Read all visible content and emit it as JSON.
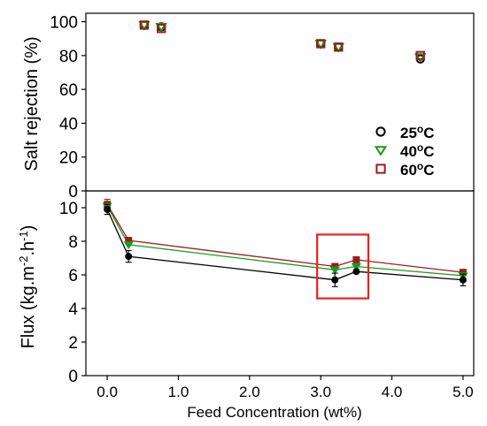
{
  "chart_data": [
    {
      "type": "scatter",
      "ylabel": "Salt rejection (%)",
      "ylim": [
        0,
        105
      ],
      "yticks": [
        0,
        20,
        40,
        60,
        80,
        100
      ],
      "xlim": [
        -0.3,
        5.15
      ],
      "legend": {
        "placement": "bottom-right",
        "unit_sup": "o",
        "unit_c": "C"
      },
      "series": [
        {
          "name": "25",
          "marker": "circle",
          "color": "#000000",
          "x": [
            0.52,
            0.76,
            3.0,
            3.25,
            4.4
          ],
          "y": [
            98,
            97,
            87,
            85,
            78
          ]
        },
        {
          "name": "40",
          "marker": "triangle-down",
          "color": "#1a9a1a",
          "x": [
            0.52,
            0.76,
            3.0,
            3.25,
            4.4
          ],
          "y": [
            98,
            97,
            87,
            85,
            79
          ]
        },
        {
          "name": "60",
          "marker": "square",
          "color": "#9b1c1c",
          "x": [
            0.52,
            0.76,
            3.0,
            3.25,
            4.4
          ],
          "y": [
            98,
            96,
            87,
            85,
            80
          ]
        }
      ]
    },
    {
      "type": "line",
      "ylabel_parts": [
        "Flux (kg.m",
        "-2",
        ".h",
        "-1",
        ")"
      ],
      "xlabel": "Feed Concentration (wt%)",
      "ylim": [
        0,
        11
      ],
      "yticks": [
        0,
        2,
        4,
        6,
        8,
        10
      ],
      "xlim": [
        -0.3,
        5.15
      ],
      "xticks": [
        0,
        1,
        2,
        3,
        4,
        5
      ],
      "xtick_labels": [
        "0.0",
        "1.0",
        "2.0",
        "3.0",
        "4.0",
        "5.0"
      ],
      "highlight_box": {
        "x": [
          2.95,
          3.67
        ],
        "y": [
          4.6,
          8.4
        ],
        "color": "#e8201f"
      },
      "series": [
        {
          "name": "25",
          "color": "#000000",
          "marker": "circle",
          "x": [
            0,
            0.3,
            3.2,
            3.5,
            5.0
          ],
          "y": [
            9.9,
            7.1,
            5.7,
            6.2,
            5.7
          ],
          "err": [
            0.3,
            0.35,
            0.4,
            0,
            0.35
          ]
        },
        {
          "name": "40",
          "color": "#1a9a1a",
          "marker": "triangle-down",
          "x": [
            0,
            0.3,
            3.2,
            3.5,
            5.0
          ],
          "y": [
            10.1,
            7.8,
            6.3,
            6.5,
            5.95
          ],
          "err": [
            0,
            0,
            0,
            0,
            0
          ]
        },
        {
          "name": "60",
          "color": "#9b1c1c",
          "marker": "square",
          "x": [
            0,
            0.3,
            3.2,
            3.5,
            5.0
          ],
          "y": [
            10.2,
            8.05,
            6.5,
            6.9,
            6.15
          ],
          "err": [
            0.3,
            0,
            0,
            0,
            0
          ]
        }
      ]
    }
  ]
}
